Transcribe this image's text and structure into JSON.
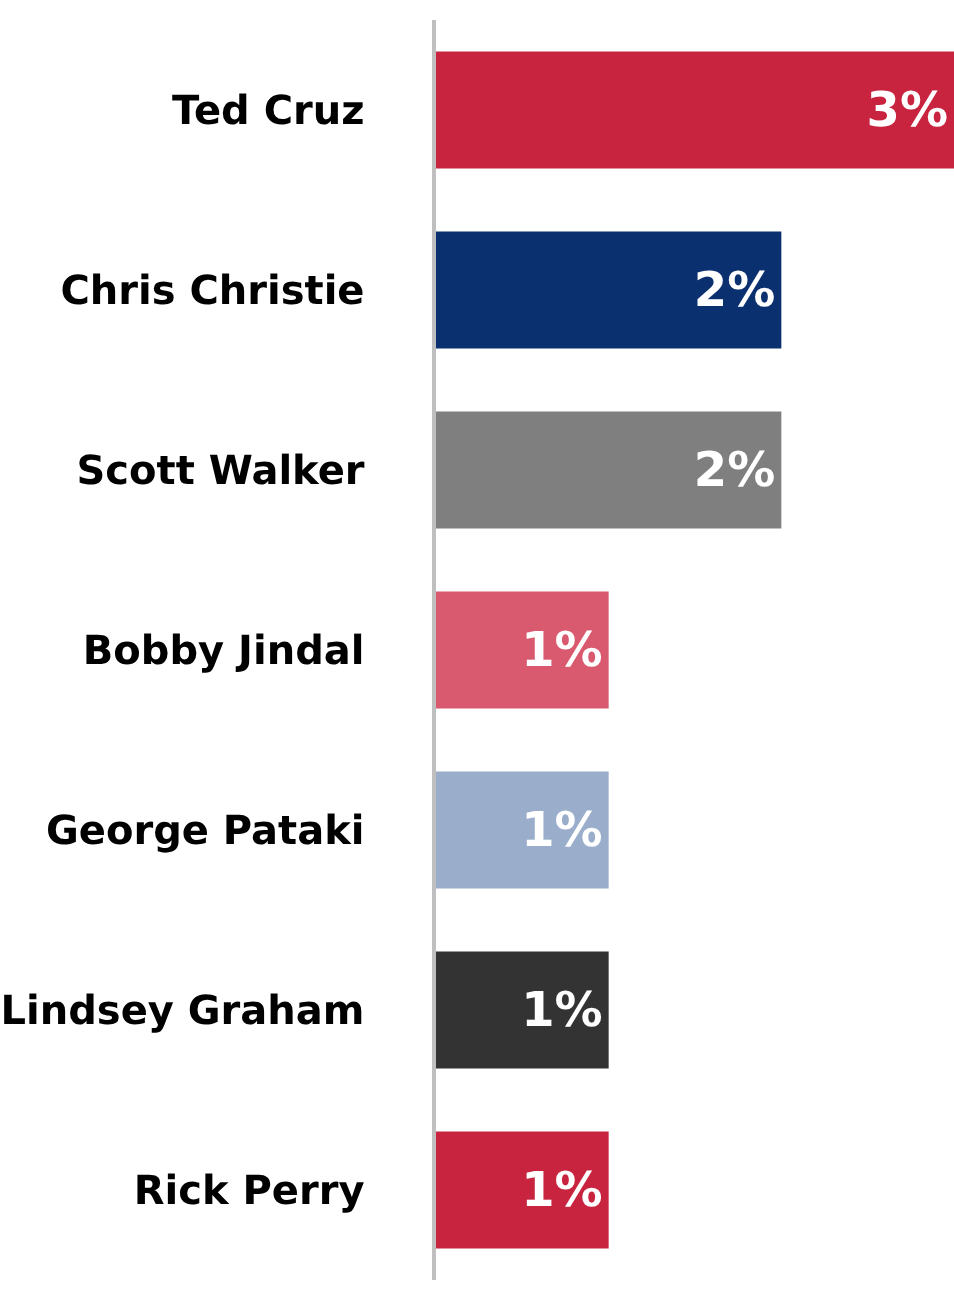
{
  "chart_data": {
    "type": "bar",
    "orientation": "horizontal",
    "categories": [
      "Ted Cruz",
      "Chris Christie",
      "Scott Walker",
      "Bobby Jindal",
      "George Pataki",
      "Lindsey Graham",
      "Rick Perry"
    ],
    "values": [
      3,
      2,
      2,
      1,
      1,
      1,
      1
    ],
    "value_labels": [
      "3%",
      "2%",
      "2%",
      "1%",
      "1%",
      "1%",
      "1%"
    ],
    "colors": [
      "#c8243f",
      "#0b3070",
      "#7f7f7f",
      "#d95a6e",
      "#9aaecb",
      "#333333",
      "#c8243f"
    ],
    "xlim": [
      0,
      3
    ]
  }
}
